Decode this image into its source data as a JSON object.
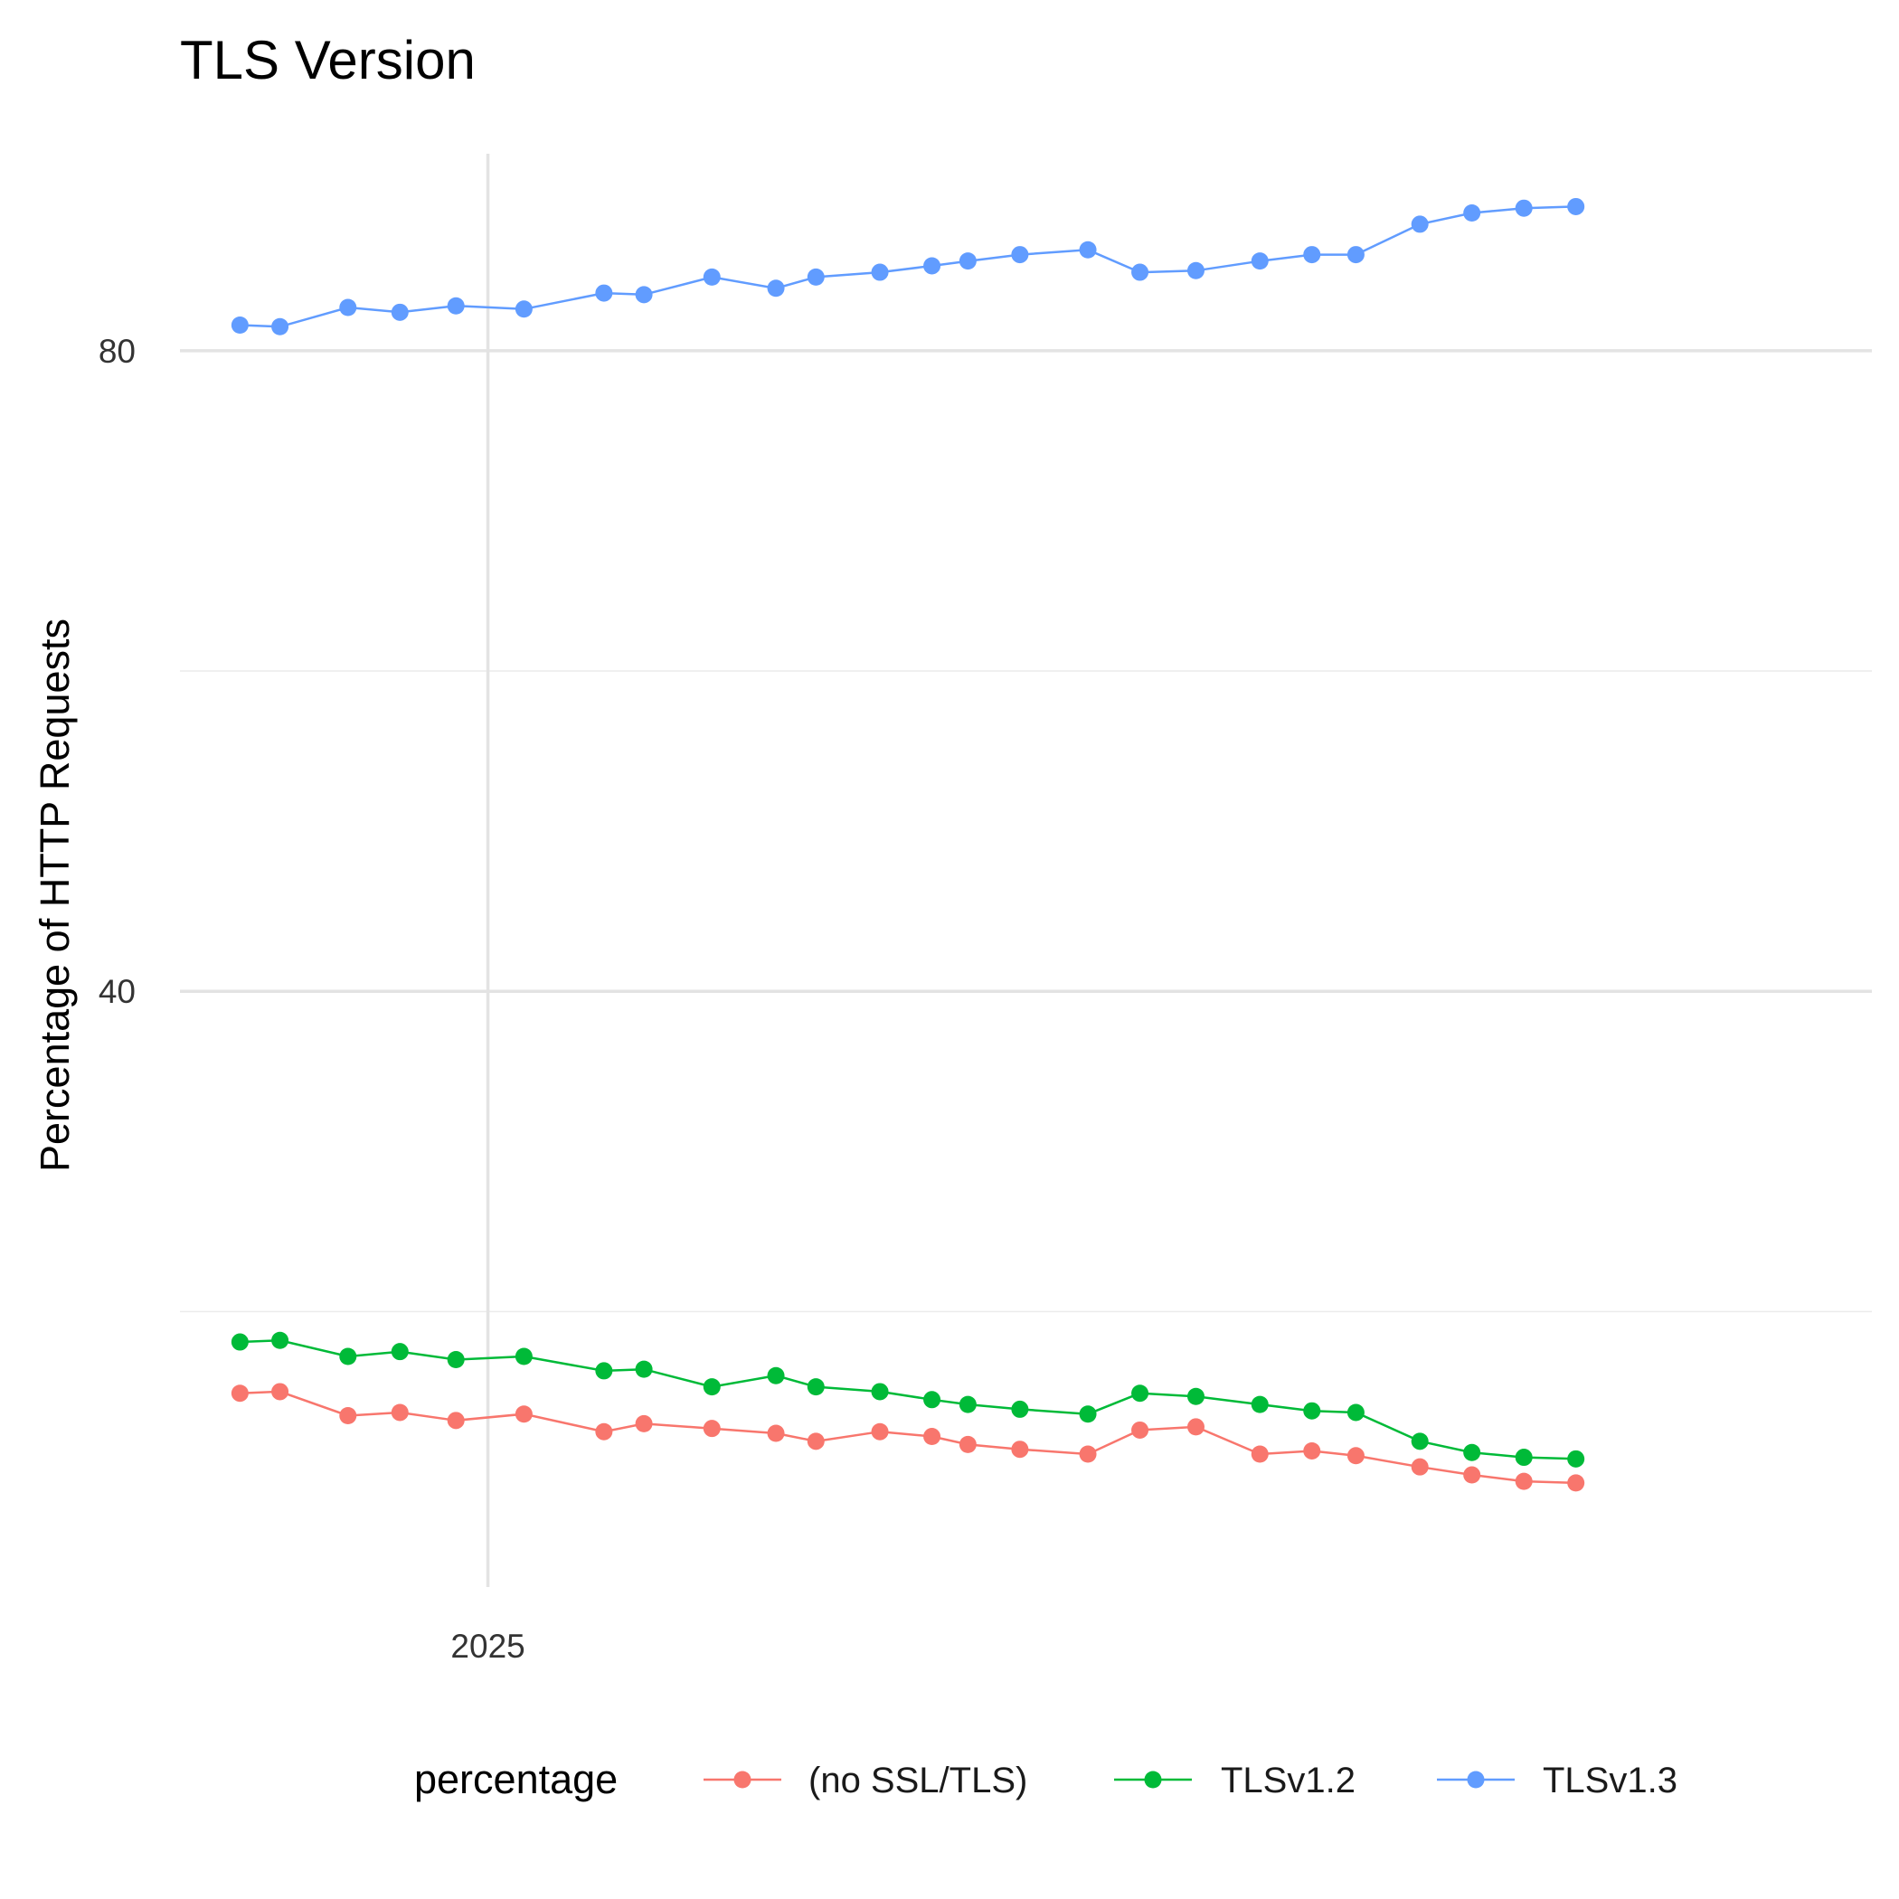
{
  "chart_data": {
    "type": "line",
    "title": "TLS Version",
    "xlabel": "",
    "ylabel": "Percentage of HTTP Requests",
    "x_ticks": [
      {
        "label": "2025",
        "value": "2025-01-01"
      }
    ],
    "y_ticks": [
      40,
      80
    ],
    "xlim": [
      "2024-10-16",
      "2025-12-13"
    ],
    "ylim": [
      2.8,
      92.3
    ],
    "grid": true,
    "legend_title": "percentage",
    "legend_position": "bottom",
    "x": [
      "2024-10-31",
      "2024-11-10",
      "2024-11-27",
      "2024-12-10",
      "2024-12-24",
      "2025-01-10",
      "2025-01-30",
      "2025-02-09",
      "2025-02-26",
      "2025-03-14",
      "2025-03-24",
      "2025-04-09",
      "2025-04-22",
      "2025-05-01",
      "2025-05-14",
      "2025-05-31",
      "2025-06-13",
      "2025-06-27",
      "2025-07-13",
      "2025-07-26",
      "2025-08-06",
      "2025-08-22",
      "2025-09-04",
      "2025-09-17",
      "2025-09-30"
    ],
    "series": [
      {
        "name": "(no SSL/TLS)",
        "color": "#F8766D",
        "values": [
          14.9,
          15.0,
          13.5,
          13.7,
          13.2,
          13.6,
          12.5,
          13.0,
          12.7,
          12.4,
          11.9,
          12.5,
          12.2,
          11.7,
          11.4,
          11.1,
          12.6,
          12.8,
          11.1,
          11.3,
          11.0,
          10.3,
          9.8,
          9.4,
          9.3
        ]
      },
      {
        "name": "TLSv1.2",
        "color": "#00BA38",
        "values": [
          18.1,
          18.2,
          17.2,
          17.5,
          17.0,
          17.2,
          16.3,
          16.4,
          15.3,
          16.0,
          15.3,
          15.0,
          14.5,
          14.2,
          13.9,
          13.6,
          14.9,
          14.7,
          14.2,
          13.8,
          13.7,
          11.9,
          11.2,
          10.9,
          10.8
        ]
      },
      {
        "name": "TLSv1.3",
        "color": "#619CFF",
        "values": [
          81.6,
          81.5,
          82.7,
          82.4,
          82.8,
          82.6,
          83.6,
          83.5,
          84.6,
          83.9,
          84.6,
          84.9,
          85.3,
          85.6,
          86.0,
          86.3,
          84.9,
          85.0,
          85.6,
          86.0,
          86.0,
          87.9,
          88.6,
          88.9,
          89.0
        ]
      }
    ]
  }
}
